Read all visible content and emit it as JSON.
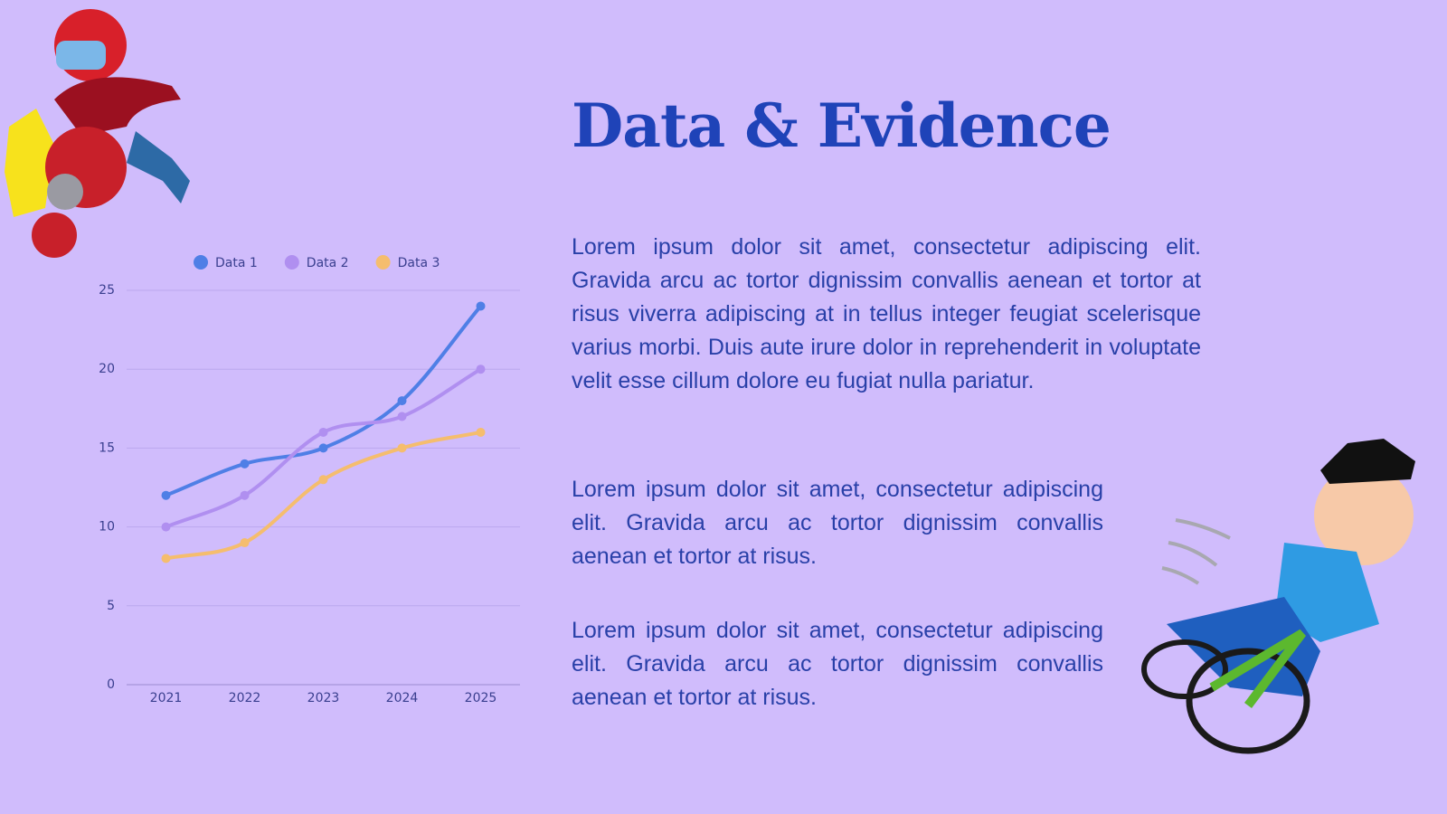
{
  "slide": {
    "title": "Data & Evidence",
    "paragraphs": [
      "Lorem ipsum dolor sit amet, consectetur adipiscing elit. Gravida arcu ac tortor dignissim convallis aenean et tortor at risus viverra adipiscing at in tellus integer feugiat scelerisque varius morbi. Duis aute irure dolor in reprehenderit in voluptate velit esse cillum dolore eu fugiat nulla pariatur.",
      "Lorem ipsum dolor sit amet, consectetur adipiscing elit. Gravida arcu ac tortor dignissim convallis aenean et tortor at risus.",
      "Lorem ipsum dolor sit amet, consectetur adipiscing elit. Gravida arcu ac tortor dignissim convallis aenean et tortor at risus."
    ]
  },
  "chart_data": {
    "type": "line",
    "categories": [
      "2021",
      "2022",
      "2023",
      "2024",
      "2025"
    ],
    "series": [
      {
        "name": "Data 1",
        "color": "#4f7fe6",
        "values": [
          12,
          14,
          15,
          18,
          24
        ]
      },
      {
        "name": "Data 2",
        "color": "#b08ff0",
        "values": [
          10,
          12,
          16,
          17,
          20
        ]
      },
      {
        "name": "Data 3",
        "color": "#f5bd6e",
        "values": [
          8,
          9,
          13,
          15,
          16
        ]
      }
    ],
    "ylim": [
      0,
      25
    ],
    "yticks": [
      0,
      5,
      10,
      15,
      20,
      25
    ],
    "grid": true,
    "legend": "top"
  }
}
